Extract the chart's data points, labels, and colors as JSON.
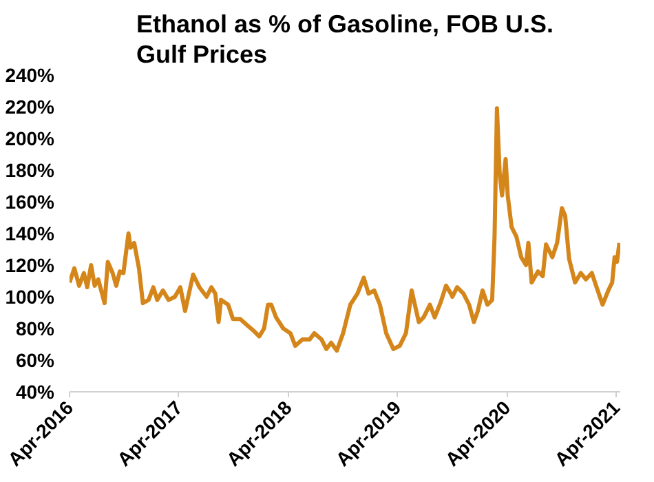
{
  "chart_data": {
    "type": "line",
    "title": "Ethanol as % of Gasoline, FOB U.S. Gulf Prices",
    "x": [
      "2016-04-01",
      "2016-04-17",
      "2016-05-03",
      "2016-05-19",
      "2016-05-30",
      "2016-06-12",
      "2016-06-24",
      "2016-07-06",
      "2016-07-27",
      "2016-08-07",
      "2016-08-23",
      "2016-09-04",
      "2016-09-16",
      "2016-09-28",
      "2016-10-15",
      "2016-10-22",
      "2016-11-03",
      "2016-11-19",
      "2016-12-02",
      "2016-12-21",
      "2017-01-06",
      "2017-01-19",
      "2017-02-07",
      "2017-02-26",
      "2017-03-19",
      "2017-04-06",
      "2017-04-22",
      "2017-05-19",
      "2017-06-09",
      "2017-07-03",
      "2017-07-19",
      "2017-08-01",
      "2017-08-12",
      "2017-08-20",
      "2017-09-13",
      "2017-09-29",
      "2017-10-23",
      "2017-11-16",
      "2017-12-10",
      "2017-12-26",
      "2018-01-11",
      "2018-01-24",
      "2018-02-04",
      "2018-02-20",
      "2018-03-16",
      "2018-04-09",
      "2018-04-25",
      "2018-05-19",
      "2018-06-12",
      "2018-06-28",
      "2018-07-22",
      "2018-08-07",
      "2018-08-23",
      "2018-09-11",
      "2018-10-02",
      "2018-10-26",
      "2018-11-19",
      "2018-12-10",
      "2018-12-26",
      "2019-01-14",
      "2019-02-02",
      "2019-02-23",
      "2019-03-19",
      "2019-04-09",
      "2019-04-30",
      "2019-05-19",
      "2019-06-12",
      "2019-06-28",
      "2019-07-19",
      "2019-08-04",
      "2019-08-23",
      "2019-09-11",
      "2019-09-27",
      "2019-10-02",
      "2019-10-18",
      "2019-11-08",
      "2019-11-27",
      "2019-12-13",
      "2019-12-26",
      "2020-01-11",
      "2020-01-27",
      "2020-02-12",
      "2020-02-20",
      "2020-02-28",
      "2020-03-08",
      "2020-03-16",
      "2020-03-28",
      "2020-04-04",
      "2020-04-17",
      "2020-05-03",
      "2020-05-19",
      "2020-06-04",
      "2020-06-12",
      "2020-06-23",
      "2020-07-14",
      "2020-07-30",
      "2020-08-10",
      "2020-08-31",
      "2020-09-16",
      "2020-10-02",
      "2020-10-13",
      "2020-10-26",
      "2020-11-15",
      "2020-12-04",
      "2020-12-21",
      "2021-01-10",
      "2021-01-26",
      "2021-02-15",
      "2021-03-06",
      "2021-03-19",
      "2021-03-27",
      "2021-04-04",
      "2021-04-12"
    ],
    "series": [
      {
        "color": "#d4861b",
        "values": [
          109,
          118,
          107,
          115,
          106,
          120,
          107,
          111,
          96,
          122,
          115,
          107,
          116,
          115,
          140,
          131,
          134,
          118,
          96,
          98,
          106,
          98,
          104,
          98,
          100,
          106,
          91,
          114,
          106,
          100,
          106,
          102,
          84,
          98,
          95,
          86,
          86,
          82,
          78,
          75,
          80,
          95,
          95,
          87,
          80,
          77,
          69,
          73,
          73,
          77,
          73,
          67,
          71,
          66,
          77,
          95,
          102,
          112,
          102,
          104,
          95,
          77,
          67,
          69,
          77,
          104,
          84,
          87,
          95,
          87,
          96,
          107,
          102,
          100,
          106,
          102,
          95,
          84,
          91,
          104,
          95,
          98,
          138,
          219,
          178,
          164,
          187,
          164,
          144,
          138,
          125,
          120,
          134,
          109,
          116,
          113,
          133,
          125,
          134,
          156,
          151,
          124,
          109,
          115,
          111,
          115,
          106,
          95,
          104,
          109,
          125,
          122,
          134
        ]
      }
    ],
    "xlim": [
      "2016-04-01",
      "2021-04-15"
    ],
    "xticks": [
      {
        "value": "2016-04-01",
        "label": "Apr-2016"
      },
      {
        "value": "2017-04-01",
        "label": "Apr-2017"
      },
      {
        "value": "2018-04-01",
        "label": "Apr-2018"
      },
      {
        "value": "2019-04-01",
        "label": "Apr-2019"
      },
      {
        "value": "2020-04-01",
        "label": "Apr-2020"
      },
      {
        "value": "2021-04-01",
        "label": "Apr-2021"
      }
    ],
    "ylim": [
      40,
      240
    ],
    "yticks": [
      {
        "value": 40,
        "label": "40%"
      },
      {
        "value": 60,
        "label": "60%"
      },
      {
        "value": 80,
        "label": "80%"
      },
      {
        "value": 100,
        "label": "100%"
      },
      {
        "value": 120,
        "label": "120%"
      },
      {
        "value": 140,
        "label": "140%"
      },
      {
        "value": 160,
        "label": "160%"
      },
      {
        "value": 180,
        "label": "180%"
      },
      {
        "value": 200,
        "label": "200%"
      },
      {
        "value": 220,
        "label": "220%"
      },
      {
        "value": 240,
        "label": "240%"
      }
    ],
    "grid": false,
    "marker": "none",
    "line_style": "solid"
  }
}
